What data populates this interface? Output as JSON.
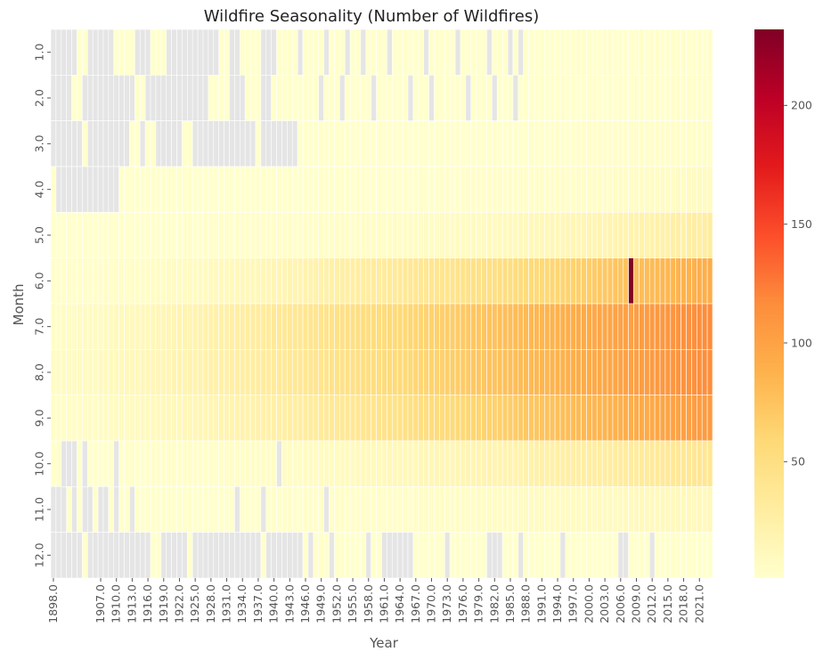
{
  "chart_data": {
    "type": "heatmap",
    "title": "Wildfire Seasonality (Number of Wildfires)",
    "xlabel": "Year",
    "ylabel": "Month",
    "year_start": 1898,
    "year_end": 2023,
    "x_tick_labels": [
      "1898.0",
      "1907.0",
      "1910.0",
      "1913.0",
      "1916.0",
      "1919.0",
      "1922.0",
      "1925.0",
      "1928.0",
      "1931.0",
      "1934.0",
      "1937.0",
      "1940.0",
      "1943.0",
      "1946.0",
      "1949.0",
      "1952.0",
      "1955.0",
      "1958.0",
      "1961.0",
      "1964.0",
      "1967.0",
      "1970.0",
      "1973.0",
      "1976.0",
      "1979.0",
      "1982.0",
      "1985.0",
      "1988.0",
      "1991.0",
      "1994.0",
      "1997.0",
      "2000.0",
      "2003.0",
      "2006.0",
      "2009.0",
      "2012.0",
      "2015.0",
      "2018.0",
      "2021.0"
    ],
    "months": [
      "1.0",
      "2.0",
      "3.0",
      "4.0",
      "5.0",
      "6.0",
      "7.0",
      "8.0",
      "9.0",
      "10.0",
      "11.0",
      "12.0"
    ],
    "colorbar_ticks": [
      50,
      100,
      150,
      200
    ],
    "value_range": [
      1,
      232
    ],
    "colormap": "YlOrRd",
    "missing_color": "#e5e5e5",
    "rows_note": "",
    "rows": [
      "n n n n n 1 1 n n n n n 1 1 1 1 n n n 1 1 1 n n n n n n n n n n 1 1 n n 1 1 1 1 n n n 1 1 1 1 n 1 1 1 1 n 1 1 1 n 1 1 n 1 1 1 1 n 1 1 1 1 1 1 n 1 1 1 1 1 n 1 1 1 1 1 n 1 1 1 n 1 n 1 1 1 1 1 1 1 1 1 1 2 2 1 1 1 2 2 1 1 1 1 1 2 1 2 2 1 1 1 1 2 1 1 2 1 2 1 n",
      "n n n n 1 1 n n n n n n n n n n 1 1 n n n n n n n n n n n n 1 1 1 1 n n n 1 1 1 n n 1 1 1 1 1 1 1 1 1 n 1 1 1 n 1 1 1 1 1 n 1 1 1 1 1 1 n 1 1 1 n 1 1 1 1 1 1 n 1 1 1 1 n 1 1 1 n 1 1 1 1 1 1 1 1 2 1 1 1 1 1 2 1 1 1 1 2 1 1 2 1 1 2 2 1 1 2 3 2 2 1 2 2 2 2 3 2",
      "n n n n n n 1 n n n n n n n n 1 1 n 1 1 n n n n n 1 1 n n n n n n n n n n n n 1 n n n n n n n 1 1 1 1 1 1 1 1 1 1 1 1 1 1 1 1 1 1 1 1 1 1 1 1 1 1 1 1 1 1 1 1 1 1 1 1 1 2 1 1 1 1 1 1 2 1 1 1 1 2 1 1 1 2 2 2 3 2 3 2 2 2 2 2 3 2 3 2 2 3 2 2 2 3 3 3 3 4 3 3 4 5",
      "1 n n n n n n n n n n n n 1 1 1 1 1 1 1 1 1 1 1 1 1 1 1 1 1 1 1 1 1 1 1 1 1 1 1 1 1 1 1 1 1 1 1 1 1 1 1 1 1 1 1 1 1 2 1 1 1 1 1 1 2 1 1 1 1 2 1 1 1 2 2 1 1 2 2 2 2 2 2 3 2 2 2 3 3 2 3 3 3 3 3 4 4 3 3 4 4 4 5 5 4 5 6 5 5 5 6 5 6 6 6 7 6 6 7 6 8 7 9 8 8",
      "1 1 1 1 1 1 1 1 1 1 1 1 1 1 1 1 1 1 1 1 1 1 1 1 1 2 2 1 1 2 2 2 2 2 1 2 2 2 2 2 2 3 2 2 3 3 3 2 3 3 3 4 3 3 4 4 4 3 4 5 4 4 5 5 4 6 5 5 6 6 5 7 6 6 7 7 7 8 7 8 9 8 9 10 9 10 10 11 10 12 11 12 13 12 13 14 13 14 15 16 15 16 17 16 18 17 19 18 20 19 21 20 22 21 22 23 24 23 25 26 24 27 28 27 29 30",
      "2 2 2 2 2 3 2 3 3 3 4 3 4 4 4 5 4 5 5 6 6 6 7 7 7 8 8 8 9 9 10 10 10 11 11 12 12 13 13 14 14 15 16 16 17 18 18 19 20 21 22 22 23 24 25 26 26 27 28 29 30 31 31 32 33 34 35 36 37 38 38 39 40 41 42 42 43 44 45 46 46 47 48 48 49 50 51 52 53 54 55 56 57 58 59 60 61 62 63 64 65 66 67 69 70 71 72 74 75 76 232 78 79 80 81 82 83 84 85 86 87 88 89 90 91 92",
      "5 5 6 6 6 7 7 7 8 8 9 9 10 10 11 11 12 13 13 14 15 15 16 17 18 18 19 20 21 22 22 23 24 25 26 27 28 29 30 31 32 33 34 35 36 37 38 39 40 41 42 43 44 45 46 47 48 49 50 51 52 53 54 55 56 57 58 59 60 61 62 63 64 65 66 67 68 69 70 71 72 73 74 75 76 77 78 79 80 81 82 83 84 85 86 87 88 89 90 91 92 93 94 95 96 97 98 99 100 101 102 103 104 105 106 107 108 109 110 111 112 113 114 115 116 117",
      "6 6 7 7 8 8 8 9 9 10 10 11 11 12 12 13 13 14 15 15 16 16 17 18 18 19 20 20 21 22 23 23 24 25 26 27 27 28 29 30 31 32 33 34 35 36 37 38 39 40 41 42 43 44 45 46 47 48 49 50 51 52 53 54 55 56 57 58 59 60 61 62 63 64 65 66 67 68 69 70 71 72 73 74 75 76 77 78 79 80 81 82 83 84 85 86 87 88 89 90 91 92 93 94 95 96 97 98 99 100 101 102 103 104 105 106 107 108 109 110 111 112 113 114 115 116",
      "4 4 4 5 5 5 6 6 6 7 7 7 8 8 8 9 9 10 10 11 11 12 12 13 13 14 14 15 16 16 17 17 18 19 19 20 21 21 22 23 24 24 25 26 27 28 28 29 30 31 32 33 34 35 35 36 37 38 39 40 41 42 43 44 45 46 47 48 49 50 51 52 53 54 55 56 57 58 59 60 61 62 63 64 65 66 67 68 69 70 71 72 73 74 75 76 77 78 79 80 81 82 83 84 85 86 87 88 89 90 91 92 93 94 95 96 97 98 99 100 101 102 103 104 105 106",
      "1 2 n n n 1 n 1 1 1 1 1 n 1 2 2 1 1 2 2 2 2 2 2 2 3 2 3 3 3 3 3 3 4 4 4 4 5 4 5 5 5 5 n 6 6 6 6 7 7 7 7 8 8 8 9 9 9 10 10 10 11 11 11 12 12 12 13 13 13 14 14 14 15 15 15 16 16 17 17 17 18 18 19 19 19 20 20 21 21 22 22 23 23 24 24 25 25 26 26 27 27 28 28 29 29 30 30 31 31 32 32 33 33 34 34 35 35 36 36 37 37 38 38 39 39",
      "n n n 1 n 1 n n 1 n n 1 n 1 1 n 1 1 1 1 1 1 1 1 1 1 1 1 1 1 1 1 1 1 1 n 1 1 1 1 n 1 2 1 2 2 2 1 2 2 2 2 n 2 2 3 2 3 3 3 2 3 3 3 3 3 3 4 3 4 4 4 4 4 5 4 5 5 5 5 5 6 5 6 6 6 6 6 7 6 7 7 7 7 7 8 7 8 8 8 8 8 9 8 9 9 9 9 9 10 9 10 10 10 10 10 11 10 11 11 11 11 11 12 11 12",
      "n n n n n n 1 n n n n n n n n n n n n 1 1 n n n n n 1 n n n n n n n n n n n n n 1 n n n n n n n 1 n 1 1 1 n 1 1 1 1 1 1 n 1 1 n n n n n n 1 1 1 1 1 1 n 1 1 1 1 1 1 1 n n n 1 1 1 n 1 1 1 1 1 1 1 n 1 1 1 1 1 1 1 1 1 1 n n 1 1 1 1 n 1 1 1 1 1 1 1 1 1 1 1 1 1 1 n"
    ]
  }
}
